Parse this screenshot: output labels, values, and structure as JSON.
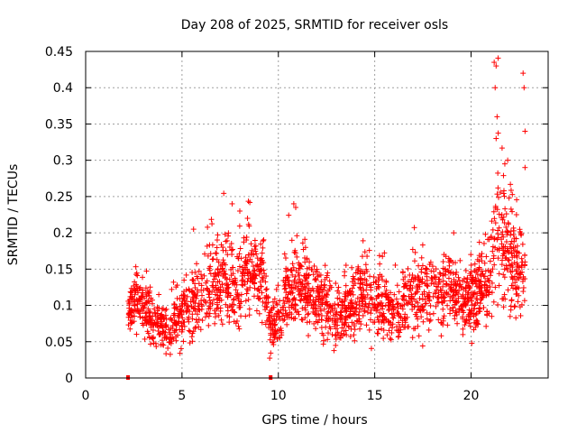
{
  "chart_data": {
    "type": "scatter",
    "title": "Day 208 of 2025, SRMTID for receiver osls",
    "xlabel": "GPS time / hours",
    "ylabel": "SRMTID / TECUs",
    "xlim": [
      0,
      24
    ],
    "ylim": [
      0,
      0.45
    ],
    "xticks": [
      0,
      5,
      10,
      15,
      20
    ],
    "xtick_labels": [
      "0",
      "5",
      "10",
      "15",
      "20"
    ],
    "yticks": [
      0,
      0.05,
      0.1,
      0.15,
      0.2,
      0.25,
      0.3,
      0.35,
      0.4,
      0.45
    ],
    "ytick_labels": [
      "0",
      "0.05",
      "0.1",
      "0.15",
      "0.2",
      "0.25",
      "0.3",
      "0.35",
      "0.4",
      "0.45"
    ],
    "grid": true,
    "marker": "+",
    "color": "#ff0000",
    "data_gap_markers_x": [
      2.2,
      9.6
    ],
    "series": [
      {
        "name": "SRMTID",
        "description": "dense point cloud approximated by a baseline trend with scatter",
        "trend_x": [
          2.2,
          2.6,
          3.0,
          3.5,
          4.0,
          4.4,
          4.8,
          5.3,
          5.8,
          6.3,
          6.8,
          7.3,
          7.8,
          8.3,
          8.8,
          9.2,
          9.6,
          10.0,
          10.5,
          11.0,
          11.5,
          12.0,
          12.5,
          13.0,
          13.5,
          14.0,
          14.5,
          15.0,
          15.5,
          16.0,
          16.5,
          17.0,
          17.5,
          18.0,
          18.5,
          19.0,
          19.5,
          20.0,
          20.5,
          21.0,
          21.3,
          21.6,
          21.9,
          22.2,
          22.5,
          22.8
        ],
        "trend_y": [
          0.09,
          0.11,
          0.1,
          0.08,
          0.07,
          0.06,
          0.08,
          0.1,
          0.11,
          0.12,
          0.13,
          0.14,
          0.12,
          0.14,
          0.15,
          0.13,
          0.07,
          0.08,
          0.12,
          0.13,
          0.12,
          0.11,
          0.1,
          0.08,
          0.09,
          0.11,
          0.12,
          0.11,
          0.1,
          0.09,
          0.1,
          0.12,
          0.11,
          0.12,
          0.13,
          0.12,
          0.1,
          0.11,
          0.12,
          0.14,
          0.2,
          0.2,
          0.17,
          0.17,
          0.15,
          0.14
        ],
        "spread_y": [
          0.02,
          0.025,
          0.025,
          0.02,
          0.02,
          0.02,
          0.025,
          0.03,
          0.03,
          0.035,
          0.035,
          0.04,
          0.035,
          0.035,
          0.035,
          0.035,
          0.02,
          0.025,
          0.035,
          0.035,
          0.03,
          0.03,
          0.03,
          0.025,
          0.025,
          0.03,
          0.03,
          0.03,
          0.03,
          0.025,
          0.03,
          0.03,
          0.03,
          0.03,
          0.035,
          0.03,
          0.025,
          0.03,
          0.03,
          0.035,
          0.07,
          0.07,
          0.06,
          0.05,
          0.045,
          0.04
        ],
        "peaks": [
          [
            21.2,
            0.435
          ],
          [
            21.3,
            0.43
          ],
          [
            21.25,
            0.4
          ],
          [
            21.35,
            0.36
          ],
          [
            21.3,
            0.33
          ],
          [
            22.7,
            0.42
          ],
          [
            22.75,
            0.4
          ],
          [
            22.8,
            0.34
          ],
          [
            21.9,
            0.3
          ],
          [
            22.8,
            0.29
          ],
          [
            7.6,
            0.24
          ],
          [
            10.8,
            0.24
          ],
          [
            10.9,
            0.235
          ],
          [
            8.0,
            0.23
          ],
          [
            8.4,
            0.22
          ],
          [
            5.6,
            0.205
          ],
          [
            19.1,
            0.2
          ]
        ]
      }
    ]
  }
}
